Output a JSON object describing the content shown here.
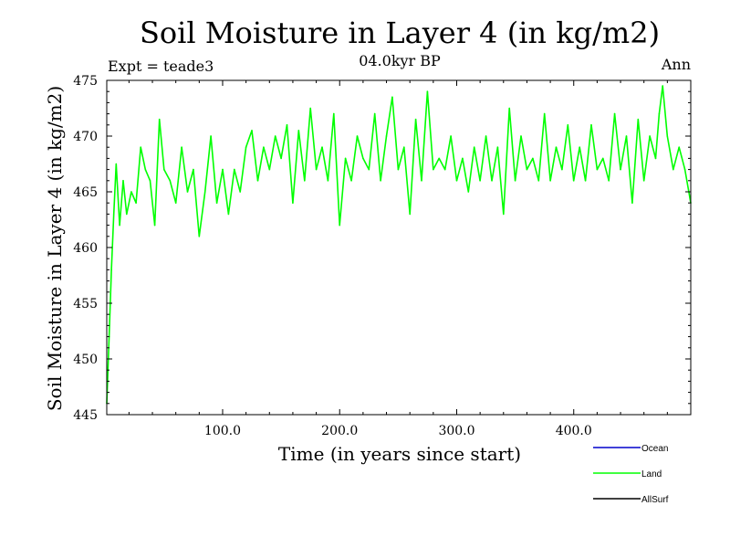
{
  "chart_data": {
    "type": "line",
    "title": "Soil Moisture in Layer 4 (in kg/m2)",
    "subtitle": "04.0kyr BP",
    "experiment_label": "Expt = teade3",
    "season_label": "Ann",
    "xlabel": "Time (in years since start)",
    "ylabel": "Soil Moisture in Layer 4 (in kg/m2)",
    "xlim": [
      1,
      500
    ],
    "ylim": [
      445,
      475
    ],
    "x_ticks": [
      100,
      200,
      300,
      400
    ],
    "x_tick_labels": [
      "100.0",
      "200.0",
      "300.0",
      "400.0"
    ],
    "y_ticks": [
      445,
      450,
      455,
      460,
      465,
      470,
      475
    ],
    "y_tick_labels": [
      "445",
      "450",
      "455",
      "460",
      "465",
      "470",
      "475"
    ],
    "grid": false,
    "legend": [
      {
        "name": "Ocean",
        "color": "#0000cc"
      },
      {
        "name": "Land",
        "color": "#00ff00"
      },
      {
        "name": "AllSurf",
        "color": "#000000"
      }
    ],
    "series": [
      {
        "name": "Land",
        "color": "#00ff00",
        "x": [
          1,
          3,
          5,
          7,
          9,
          12,
          15,
          18,
          22,
          26,
          30,
          34,
          38,
          42,
          46,
          50,
          55,
          60,
          65,
          70,
          75,
          80,
          85,
          90,
          95,
          100,
          105,
          110,
          115,
          120,
          125,
          130,
          135,
          140,
          145,
          150,
          155,
          160,
          165,
          170,
          175,
          180,
          185,
          190,
          195,
          200,
          205,
          210,
          215,
          220,
          225,
          230,
          235,
          240,
          245,
          250,
          255,
          260,
          265,
          270,
          275,
          280,
          285,
          290,
          295,
          300,
          305,
          310,
          315,
          320,
          325,
          330,
          335,
          340,
          345,
          350,
          355,
          360,
          365,
          370,
          375,
          380,
          385,
          390,
          395,
          400,
          405,
          410,
          415,
          420,
          425,
          430,
          435,
          440,
          445,
          450,
          455,
          460,
          465,
          470,
          473,
          476,
          480,
          485,
          490,
          495,
          500
        ],
        "values": [
          446,
          452,
          458,
          463,
          467.5,
          462,
          466,
          463,
          465,
          464,
          469,
          467,
          466,
          462,
          471.5,
          467,
          466,
          464,
          469,
          465,
          467,
          461,
          465,
          470,
          464,
          467,
          463,
          467,
          465,
          469,
          470.5,
          466,
          469,
          467,
          470,
          468,
          471,
          464,
          470.5,
          466,
          472.5,
          467,
          469,
          466,
          472,
          462,
          468,
          466,
          470,
          468,
          467,
          472,
          466,
          470,
          473.5,
          467,
          469,
          463,
          471.5,
          466,
          474,
          467,
          468,
          467,
          470,
          466,
          468,
          465,
          469,
          466,
          470,
          466,
          469,
          463,
          472.5,
          466,
          470,
          467,
          468,
          466,
          472,
          466,
          469,
          467,
          471,
          466,
          469,
          466,
          471,
          467,
          468,
          466,
          472,
          467,
          470,
          464,
          471.5,
          466,
          470,
          468,
          472,
          474.5,
          470,
          467,
          469,
          467,
          464
        ]
      }
    ]
  }
}
